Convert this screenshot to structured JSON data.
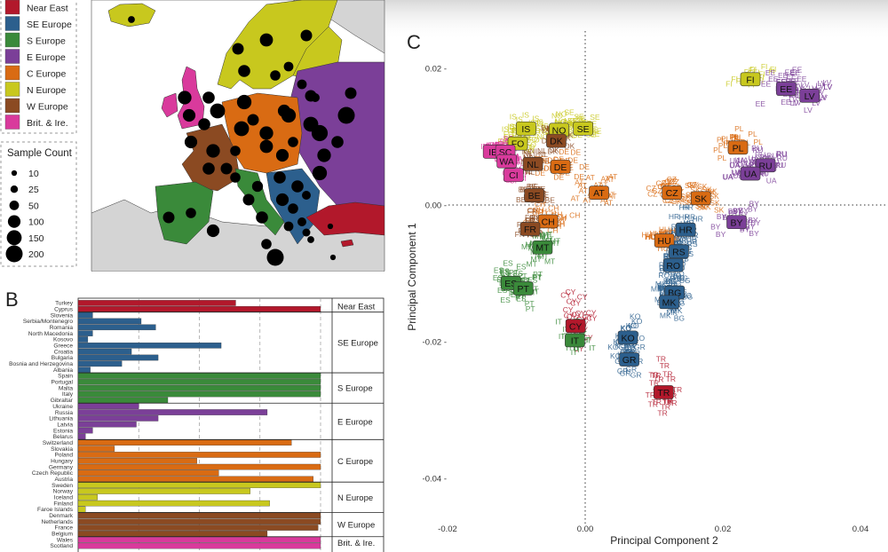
{
  "panels": {
    "b_label": "B",
    "c_label": "C"
  },
  "legend": {
    "regions": [
      {
        "name": "Near East",
        "color": "#b2182b"
      },
      {
        "name": "SE Europe",
        "color": "#2c5f8d"
      },
      {
        "name": "S Europe",
        "color": "#3a8a3a"
      },
      {
        "name": "E Europe",
        "color": "#7b3f98"
      },
      {
        "name": "C Europe",
        "color": "#d96b13"
      },
      {
        "name": "N Europe",
        "color": "#c8c81e"
      },
      {
        "name": "W Europe",
        "color": "#8b4a22"
      },
      {
        "name": "Brit. & Ire.",
        "color": "#d93a9c"
      }
    ],
    "count_title": "Sample Count",
    "counts": [
      10,
      25,
      50,
      100,
      150,
      200
    ]
  },
  "map": {
    "dot_sample_counts": [
      20,
      80,
      110,
      80,
      90,
      60,
      50,
      50,
      40,
      80,
      90,
      120,
      100,
      90,
      150,
      120,
      140,
      110,
      100,
      180,
      200,
      140,
      120,
      100,
      90,
      80,
      60,
      70,
      90,
      90,
      100,
      60,
      40,
      40,
      50,
      30,
      20,
      10,
      10,
      80,
      60,
      100,
      80,
      90,
      60,
      80,
      120,
      200,
      140,
      150,
      80,
      60,
      150,
      90,
      100,
      60
    ]
  },
  "chart_data": [
    {
      "type": "bar",
      "panel": "B",
      "orientation": "horizontal",
      "categories": [
        "Turkey",
        "Cyprus",
        "Slovenia",
        "Serbia/Montenegro",
        "Romania",
        "North Macedonia",
        "Kosovo",
        "Greece",
        "Croatia",
        "Bulgaria",
        "Bosnia and Herzegovina",
        "Albania",
        "Spain",
        "Portugal",
        "Malta",
        "Italy",
        "Gibraltar",
        "Ukraine",
        "Russia",
        "Lithuania",
        "Latvia",
        "Estonia",
        "Belarus",
        "Switzerland",
        "Slovakia",
        "Poland",
        "Hungary",
        "Germany",
        "Czech Republic",
        "Austria",
        "Sweden",
        "Norway",
        "Iceland",
        "Finland",
        "Faroe Islands",
        "Denmark",
        "Netherlands",
        "France",
        "Belgium",
        "Wales",
        "Scotland"
      ],
      "values": [
        0.65,
        1.0,
        0.06,
        0.26,
        0.32,
        0.06,
        0.04,
        0.59,
        0.22,
        0.33,
        0.18,
        0.05,
        1.0,
        1.0,
        1.0,
        1.0,
        0.37,
        0.25,
        0.78,
        0.33,
        0.24,
        0.06,
        0.03,
        0.88,
        0.15,
        1.0,
        0.49,
        1.0,
        0.58,
        0.97,
        1.0,
        0.71,
        0.08,
        0.79,
        0.03,
        1.0,
        1.0,
        0.99,
        0.78,
        1.0,
        1.0
      ],
      "groups": [
        {
          "name": "Near East",
          "from": 0,
          "to": 1
        },
        {
          "name": "SE Europe",
          "from": 2,
          "to": 11
        },
        {
          "name": "S Europe",
          "from": 12,
          "to": 16
        },
        {
          "name": "E Europe",
          "from": 17,
          "to": 22
        },
        {
          "name": "C Europe",
          "from": 23,
          "to": 29
        },
        {
          "name": "N Europe",
          "from": 30,
          "to": 34
        },
        {
          "name": "W Europe",
          "from": 35,
          "to": 38
        },
        {
          "name": "Brit. & Ire.",
          "from": 39,
          "to": 40
        }
      ],
      "xlim": [
        0,
        1
      ],
      "grid": "dashed vertical lines"
    },
    {
      "type": "scatter",
      "panel": "C",
      "xlabel": "Principal Component 2",
      "ylabel": "Principal Component 1",
      "xlim": [
        -0.022,
        0.043
      ],
      "ylim": [
        -0.048,
        0.028
      ],
      "xticks": [
        -0.02,
        0.0,
        0.02,
        0.04
      ],
      "xtick_labels": [
        "-0.02",
        "0.00",
        "0.02",
        "0.04"
      ],
      "yticks": [
        0.02,
        0.0,
        -0.02,
        -0.04
      ],
      "ytick_labels": [
        "0.02 -",
        "0.00 -",
        "-0.02 -",
        "-0.04 -"
      ],
      "reference_lines": {
        "x": 0.0,
        "y": 0.0,
        "style": "dotted"
      },
      "country_labels": [
        {
          "code": "FI",
          "region": "N Europe",
          "x": 0.024,
          "y": 0.0184
        },
        {
          "code": "EE",
          "region": "E Europe",
          "x": 0.0292,
          "y": 0.017
        },
        {
          "code": "LV",
          "region": "E Europe",
          "x": 0.0326,
          "y": 0.016
        },
        {
          "code": "IS",
          "region": "N Europe",
          "x": -0.0086,
          "y": 0.0112
        },
        {
          "code": "NO",
          "region": "N Europe",
          "x": -0.0038,
          "y": 0.011
        },
        {
          "code": "SE",
          "region": "N Europe",
          "x": -0.0003,
          "y": 0.0112
        },
        {
          "code": "DK",
          "region": "W Europe",
          "x": -0.0042,
          "y": 0.0094
        },
        {
          "code": "FO",
          "region": "N Europe",
          "x": -0.0098,
          "y": 0.009
        },
        {
          "code": "IE",
          "region": "Brit. & Ire.",
          "x": -0.0134,
          "y": 0.0078
        },
        {
          "code": "SC",
          "region": "Brit. & Ire.",
          "x": -0.0116,
          "y": 0.0078
        },
        {
          "code": "WA",
          "region": "Brit. & Ire.",
          "x": -0.0114,
          "y": 0.0064
        },
        {
          "code": "NL",
          "region": "W Europe",
          "x": -0.0076,
          "y": 0.006
        },
        {
          "code": "CI",
          "region": "Brit. & Ire.",
          "x": -0.0104,
          "y": 0.0044
        },
        {
          "code": "DE",
          "region": "C Europe",
          "x": -0.0036,
          "y": 0.0056
        },
        {
          "code": "PL",
          "region": "C Europe",
          "x": 0.0222,
          "y": 0.0084
        },
        {
          "code": "RU",
          "region": "E Europe",
          "x": 0.0262,
          "y": 0.0058
        },
        {
          "code": "UA",
          "region": "E Europe",
          "x": 0.024,
          "y": 0.0046
        },
        {
          "code": "BE",
          "region": "W Europe",
          "x": -0.0074,
          "y": 0.0014
        },
        {
          "code": "AT",
          "region": "C Europe",
          "x": 0.002,
          "y": 0.0018
        },
        {
          "code": "CZ",
          "region": "C Europe",
          "x": 0.0126,
          "y": 0.0018
        },
        {
          "code": "SK",
          "region": "C Europe",
          "x": 0.0168,
          "y": 0.001
        },
        {
          "code": "BY",
          "region": "E Europe",
          "x": 0.022,
          "y": -0.0025
        },
        {
          "code": "CH",
          "region": "C Europe",
          "x": -0.0054,
          "y": -0.0024
        },
        {
          "code": "FR",
          "region": "W Europe",
          "x": -0.008,
          "y": -0.0035
        },
        {
          "code": "HR",
          "region": "SE Europe",
          "x": 0.0146,
          "y": -0.0036
        },
        {
          "code": "HU",
          "region": "C Europe",
          "x": 0.0115,
          "y": -0.0052
        },
        {
          "code": "MT",
          "region": "S Europe",
          "x": -0.0062,
          "y": -0.0062
        },
        {
          "code": "RS",
          "region": "SE Europe",
          "x": 0.0136,
          "y": -0.0068
        },
        {
          "code": "RO",
          "region": "SE Europe",
          "x": 0.0128,
          "y": -0.0088
        },
        {
          "code": "ES",
          "region": "S Europe",
          "x": -0.0108,
          "y": -0.0114
        },
        {
          "code": "PT",
          "region": "S Europe",
          "x": -0.009,
          "y": -0.0122
        },
        {
          "code": "BG",
          "region": "SE Europe",
          "x": 0.013,
          "y": -0.0128
        },
        {
          "code": "MK",
          "region": "SE Europe",
          "x": 0.0122,
          "y": -0.0142
        },
        {
          "code": "CY",
          "region": "Near East",
          "x": -0.0014,
          "y": -0.0177
        },
        {
          "code": "IT",
          "region": "S Europe",
          "x": -0.0015,
          "y": -0.0198
        },
        {
          "code": "KO",
          "region": "SE Europe",
          "x": 0.0062,
          "y": -0.0194
        },
        {
          "code": "GR",
          "region": "SE Europe",
          "x": 0.0064,
          "y": -0.0226
        },
        {
          "code": "TR",
          "region": "Near East",
          "x": 0.0114,
          "y": -0.0274
        }
      ]
    }
  ]
}
